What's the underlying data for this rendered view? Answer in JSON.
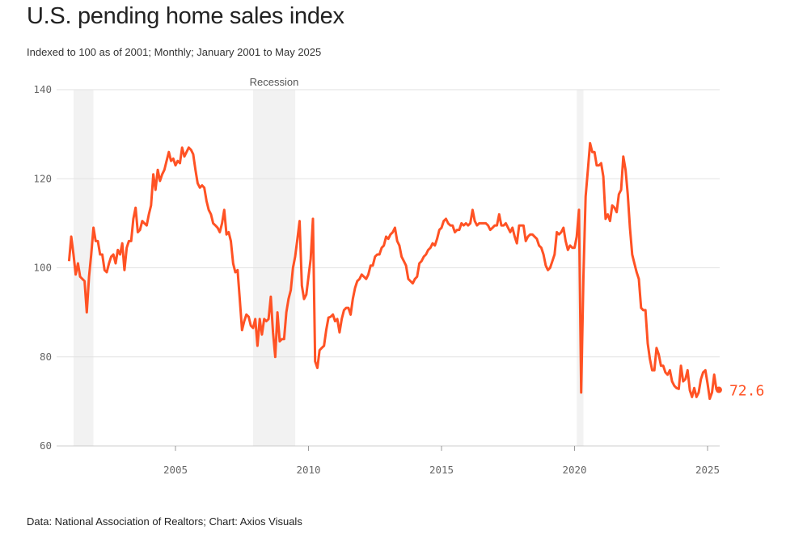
{
  "title": "U.S. pending home sales index",
  "subtitle": "Indexed to 100 as of 2001; Monthly; January 2001 to May 2025",
  "source": "Data: National Association of Realtors; Chart: Axios Visuals",
  "colors": {
    "line": "#ff5224",
    "recession": "#f2f2f2",
    "grid": "#e2e2e2",
    "text": "#666666"
  },
  "chart_data": {
    "type": "line",
    "title": "U.S. pending home sales index",
    "frequency": "monthly",
    "start": "2001-01",
    "end": "2025-05",
    "ylim": [
      60,
      140
    ],
    "yticks": [
      "60",
      "80",
      "100",
      "120",
      "140"
    ],
    "xticks": [
      "2005",
      "2010",
      "2015",
      "2020",
      "2025"
    ],
    "grid": "horizontal",
    "recession_label": "Recession",
    "recessions": [
      [
        "2001-03",
        "2001-11"
      ],
      [
        "2007-12",
        "2009-06"
      ],
      [
        "2020-02",
        "2020-04"
      ]
    ],
    "end_label": "72.6",
    "values": [
      101.5,
      107,
      103,
      98.5,
      101,
      98,
      97.5,
      97,
      90,
      98,
      103,
      109,
      106,
      106,
      103,
      103,
      99.5,
      99,
      101,
      102.5,
      103,
      101,
      104,
      103,
      105.5,
      99.5,
      104.5,
      106,
      106,
      111,
      113.5,
      108,
      108.5,
      110.5,
      110,
      109.5,
      112,
      114,
      121,
      117.5,
      122,
      119.5,
      121,
      122,
      124,
      126,
      124,
      124.5,
      123,
      124,
      123.5,
      127,
      125,
      126,
      127,
      126.5,
      125.5,
      122,
      119,
      118,
      118.5,
      118,
      115,
      113,
      112,
      110,
      109.5,
      109,
      108,
      110,
      113,
      107.5,
      108,
      106,
      101,
      99,
      99.5,
      93,
      86,
      88,
      89.5,
      89,
      87,
      86.5,
      88.5,
      82.5,
      88.5,
      85,
      88.5,
      88,
      88.5,
      93.5,
      85.5,
      80,
      90,
      83.5,
      84,
      84,
      90,
      93,
      95,
      100,
      102.5,
      106.5,
      110.5,
      96,
      93,
      94,
      98,
      102,
      111,
      79,
      77.5,
      81.5,
      82,
      82.5,
      86,
      88.8,
      89,
      89.5,
      88,
      88.5,
      85.5,
      88.5,
      90.5,
      91,
      91,
      89.5,
      93,
      95.5,
      97,
      97.5,
      98.5,
      98,
      97.5,
      98.5,
      100.5,
      100.5,
      102.5,
      103,
      103,
      104.5,
      105,
      107,
      106.5,
      107.5,
      108,
      109,
      106,
      105,
      102.5,
      101.5,
      100.5,
      97.5,
      97,
      96.5,
      97.5,
      98,
      101,
      101.5,
      102.5,
      103,
      104,
      104.5,
      105.5,
      105,
      106.5,
      108.5,
      109,
      110.5,
      111,
      110,
      109.5,
      109.5,
      108,
      108.5,
      108.5,
      110,
      109.5,
      110,
      109.5,
      110,
      113,
      110.5,
      109.5,
      110,
      110,
      110,
      110,
      109.5,
      108.5,
      109,
      109.5,
      109.5,
      112,
      109.5,
      109.5,
      110,
      109,
      108,
      109,
      107,
      105.5,
      109.5,
      109.5,
      109.5,
      106,
      107,
      107.5,
      107.5,
      107,
      106.5,
      105,
      104.5,
      103,
      100.5,
      99.5,
      100,
      101.5,
      103,
      108,
      107.5,
      108,
      109,
      106,
      104,
      105,
      104.5,
      104.5,
      107,
      113,
      72,
      98,
      116,
      122,
      128,
      126,
      126,
      123,
      123,
      123.5,
      120.5,
      111,
      112,
      110.5,
      114,
      113.5,
      112.5,
      116.5,
      117.5,
      125,
      122,
      116.5,
      109,
      103,
      101,
      99,
      97.5,
      91,
      90.5,
      90.5,
      83,
      79.5,
      77,
      77,
      82,
      80.5,
      78,
      78,
      76.5,
      76,
      77,
      74.5,
      73.5,
      73,
      72.8,
      78,
      74.5,
      75,
      77,
      72.5,
      71,
      73,
      71,
      72,
      75,
      76.5,
      77,
      74,
      70.6,
      72,
      76,
      72.6
    ]
  }
}
